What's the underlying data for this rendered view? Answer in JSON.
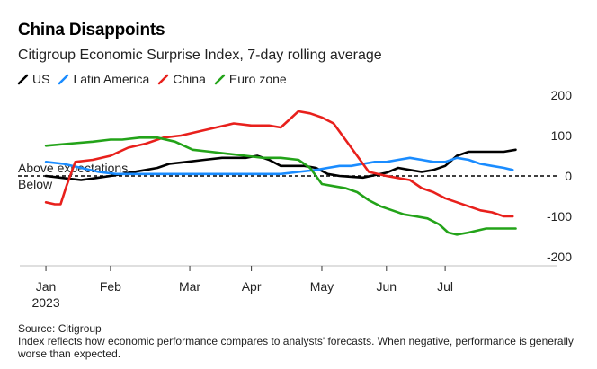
{
  "title": "China Disappoints",
  "subtitle": "Citigroup Economic Surprise Index, 7-day rolling average",
  "legend": [
    {
      "label": "US",
      "color": "#000000"
    },
    {
      "label": "Latin America",
      "color": "#1a8cff"
    },
    {
      "label": "China",
      "color": "#e8201c"
    },
    {
      "label": "Euro zone",
      "color": "#23a319"
    }
  ],
  "footer": {
    "source": "Source: Citigroup",
    "note": "Index reflects how economic performance compares to analysts' forecasts. When negative, performance is generally worse than expected."
  },
  "chart_data": {
    "type": "line",
    "ylim": [
      -200,
      200
    ],
    "y_ticks": [
      200,
      100,
      0,
      -100,
      -200
    ],
    "x_ticks": [
      "Jan\n2023",
      "Feb",
      "Mar",
      "Apr",
      "May",
      "Jun",
      "Jul"
    ],
    "x_tick_pos": [
      0,
      1.1,
      2.45,
      3.5,
      4.7,
      5.8,
      6.8
    ],
    "xlim": [
      -0.2,
      8.1
    ],
    "annotations": {
      "above": "Above expectations",
      "below": "Below"
    },
    "series": [
      {
        "name": "US",
        "color": "#000000",
        "x": [
          0,
          0.3,
          0.6,
          0.85,
          1.1,
          1.3,
          1.5,
          1.7,
          1.9,
          2.1,
          2.4,
          2.7,
          3.0,
          3.2,
          3.4,
          3.6,
          3.8,
          4.0,
          4.2,
          4.4,
          4.6,
          4.8,
          5.0,
          5.2,
          5.4,
          5.6,
          5.8,
          6.0,
          6.2,
          6.4,
          6.6,
          6.8,
          7.0,
          7.2,
          7.4,
          7.6,
          7.8,
          8.0
        ],
        "y": [
          0,
          -5,
          -10,
          -5,
          0,
          5,
          10,
          15,
          20,
          30,
          35,
          40,
          45,
          45,
          45,
          50,
          40,
          25,
          25,
          25,
          20,
          5,
          0,
          -2,
          -4,
          2,
          8,
          20,
          15,
          10,
          15,
          25,
          50,
          60,
          60,
          60,
          60,
          65
        ]
      },
      {
        "name": "Latin America",
        "color": "#1a8cff",
        "x": [
          0,
          0.3,
          0.6,
          0.9,
          1.2,
          1.5,
          2.0,
          2.5,
          3.0,
          3.5,
          4.0,
          4.3,
          4.6,
          4.8,
          5.0,
          5.2,
          5.4,
          5.6,
          5.8,
          6.0,
          6.2,
          6.4,
          6.6,
          6.8,
          7.0,
          7.2,
          7.4,
          7.6,
          7.8,
          7.95
        ],
        "y": [
          35,
          30,
          20,
          10,
          5,
          5,
          5,
          5,
          5,
          5,
          5,
          10,
          15,
          20,
          25,
          25,
          30,
          35,
          35,
          40,
          45,
          40,
          35,
          35,
          45,
          40,
          30,
          25,
          20,
          15
        ]
      },
      {
        "name": "China",
        "color": "#e8201c",
        "x": [
          0,
          0.15,
          0.25,
          0.35,
          0.5,
          0.8,
          1.1,
          1.4,
          1.7,
          2.0,
          2.3,
          2.6,
          2.9,
          3.2,
          3.5,
          3.8,
          4.0,
          4.15,
          4.3,
          4.5,
          4.7,
          4.9,
          5.1,
          5.3,
          5.5,
          5.8,
          6.0,
          6.2,
          6.4,
          6.6,
          6.8,
          7.0,
          7.2,
          7.4,
          7.6,
          7.8,
          7.95
        ],
        "y": [
          -65,
          -70,
          -70,
          -25,
          35,
          40,
          50,
          70,
          80,
          95,
          100,
          110,
          120,
          130,
          125,
          125,
          120,
          140,
          160,
          155,
          145,
          130,
          90,
          50,
          10,
          0,
          -5,
          -10,
          -30,
          -40,
          -55,
          -65,
          -75,
          -85,
          -90,
          -100,
          -100
        ]
      },
      {
        "name": "Euro zone",
        "color": "#23a319",
        "x": [
          0,
          0.4,
          0.8,
          1.1,
          1.3,
          1.6,
          1.9,
          2.2,
          2.5,
          2.8,
          3.1,
          3.4,
          3.7,
          4.0,
          4.3,
          4.5,
          4.7,
          4.9,
          5.1,
          5.3,
          5.5,
          5.7,
          5.9,
          6.1,
          6.3,
          6.5,
          6.7,
          6.85,
          7.0,
          7.2,
          7.5,
          7.8,
          8.0
        ],
        "y": [
          75,
          80,
          85,
          90,
          90,
          95,
          95,
          85,
          65,
          60,
          55,
          50,
          45,
          45,
          40,
          20,
          -20,
          -25,
          -30,
          -40,
          -60,
          -75,
          -85,
          -95,
          -100,
          -105,
          -120,
          -140,
          -145,
          -140,
          -130,
          -130,
          -130
        ]
      }
    ]
  }
}
